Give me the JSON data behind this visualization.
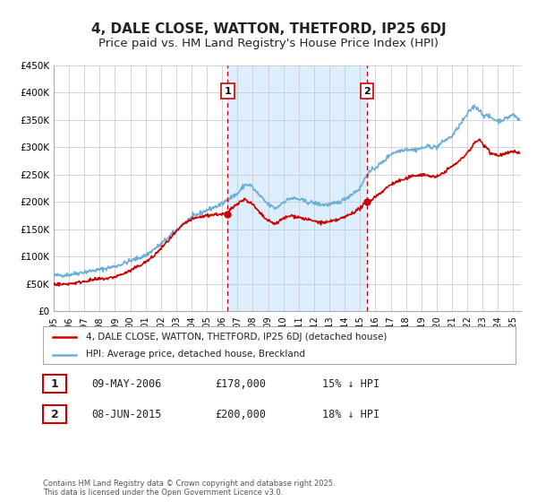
{
  "title": "4, DALE CLOSE, WATTON, THETFORD, IP25 6DJ",
  "subtitle": "Price paid vs. HM Land Registry's House Price Index (HPI)",
  "ylim": [
    0,
    450000
  ],
  "yticks": [
    0,
    50000,
    100000,
    150000,
    200000,
    250000,
    300000,
    350000,
    400000,
    450000
  ],
  "ytick_labels": [
    "£0",
    "£50K",
    "£100K",
    "£150K",
    "£200K",
    "£250K",
    "£300K",
    "£350K",
    "£400K",
    "£450K"
  ],
  "xlim_start": 1995.0,
  "xlim_end": 2025.5,
  "xticks": [
    1995,
    1996,
    1997,
    1998,
    1999,
    2000,
    2001,
    2002,
    2003,
    2004,
    2005,
    2006,
    2007,
    2008,
    2009,
    2010,
    2011,
    2012,
    2013,
    2014,
    2015,
    2016,
    2017,
    2018,
    2019,
    2020,
    2021,
    2022,
    2023,
    2024,
    2025
  ],
  "hpi_color": "#6baed6",
  "price_color": "#cc0000",
  "sale1_x": 2006.356,
  "sale1_y": 178000,
  "sale2_x": 2015.44,
  "sale2_y": 200000,
  "vline_color": "#cc0000",
  "vline1_x": 2006.356,
  "vline2_x": 2015.44,
  "shaded_color": "#ddeeff",
  "legend_label1": "4, DALE CLOSE, WATTON, THETFORD, IP25 6DJ (detached house)",
  "legend_label2": "HPI: Average price, detached house, Breckland",
  "table_row1": [
    "1",
    "09-MAY-2006",
    "£178,000",
    "15% ↓ HPI"
  ],
  "table_row2": [
    "2",
    "08-JUN-2015",
    "£200,000",
    "18% ↓ HPI"
  ],
  "footer": "Contains HM Land Registry data © Crown copyright and database right 2025.\nThis data is licensed under the Open Government Licence v3.0.",
  "background_color": "#ffffff",
  "grid_color": "#cccccc",
  "title_fontsize": 11,
  "subtitle_fontsize": 9.5
}
